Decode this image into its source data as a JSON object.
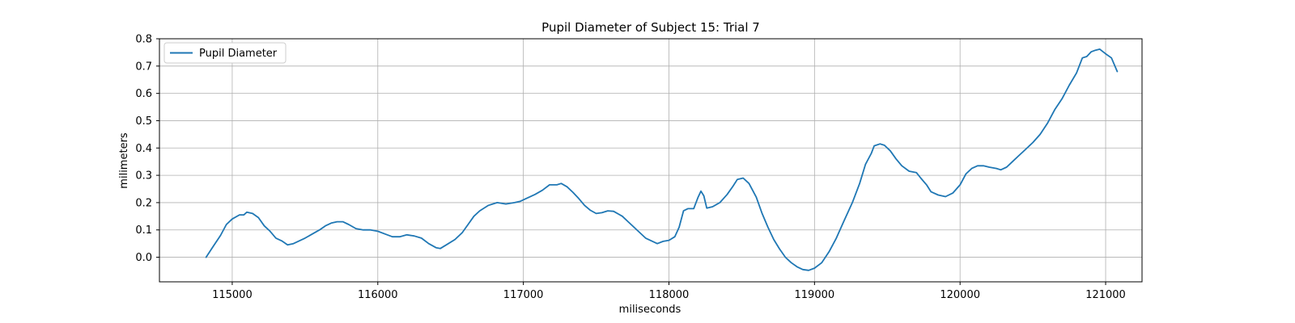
{
  "chart_data": {
    "type": "line",
    "title": "Pupil Diameter of Subject 15: Trial 7",
    "xlabel": "miliseconds",
    "ylabel": "milimeters",
    "xlim": [
      114500,
      121250
    ],
    "ylim": [
      -0.09,
      0.8
    ],
    "xticks": [
      115000,
      116000,
      117000,
      118000,
      119000,
      120000,
      121000
    ],
    "yticks": [
      0.0,
      0.1,
      0.2,
      0.3,
      0.4,
      0.5,
      0.6,
      0.7,
      0.8
    ],
    "ytick_labels": [
      "0.0",
      "0.1",
      "0.2",
      "0.3",
      "0.4",
      "0.5",
      "0.6",
      "0.7",
      "0.8"
    ],
    "grid": true,
    "legend_position": "top-left",
    "series": [
      {
        "name": "Pupil Diameter",
        "color": "#1f77b4",
        "points": [
          [
            114820,
            0.0
          ],
          [
            114870,
            0.04
          ],
          [
            114920,
            0.08
          ],
          [
            114960,
            0.12
          ],
          [
            115000,
            0.14
          ],
          [
            115050,
            0.155
          ],
          [
            115080,
            0.155
          ],
          [
            115100,
            0.165
          ],
          [
            115140,
            0.16
          ],
          [
            115180,
            0.145
          ],
          [
            115220,
            0.115
          ],
          [
            115260,
            0.095
          ],
          [
            115300,
            0.07
          ],
          [
            115340,
            0.06
          ],
          [
            115380,
            0.045
          ],
          [
            115420,
            0.05
          ],
          [
            115460,
            0.06
          ],
          [
            115500,
            0.07
          ],
          [
            115550,
            0.085
          ],
          [
            115600,
            0.1
          ],
          [
            115640,
            0.115
          ],
          [
            115680,
            0.125
          ],
          [
            115720,
            0.13
          ],
          [
            115760,
            0.13
          ],
          [
            115800,
            0.12
          ],
          [
            115850,
            0.105
          ],
          [
            115900,
            0.1
          ],
          [
            115950,
            0.1
          ],
          [
            116000,
            0.095
          ],
          [
            116050,
            0.085
          ],
          [
            116100,
            0.075
          ],
          [
            116150,
            0.075
          ],
          [
            116200,
            0.082
          ],
          [
            116250,
            0.078
          ],
          [
            116300,
            0.07
          ],
          [
            116350,
            0.05
          ],
          [
            116400,
            0.035
          ],
          [
            116430,
            0.032
          ],
          [
            116470,
            0.045
          ],
          [
            116530,
            0.065
          ],
          [
            116580,
            0.09
          ],
          [
            116620,
            0.12
          ],
          [
            116660,
            0.15
          ],
          [
            116700,
            0.17
          ],
          [
            116760,
            0.19
          ],
          [
            116820,
            0.2
          ],
          [
            116880,
            0.195
          ],
          [
            116940,
            0.2
          ],
          [
            116980,
            0.205
          ],
          [
            117020,
            0.215
          ],
          [
            117080,
            0.23
          ],
          [
            117130,
            0.245
          ],
          [
            117180,
            0.265
          ],
          [
            117230,
            0.265
          ],
          [
            117260,
            0.27
          ],
          [
            117300,
            0.258
          ],
          [
            117340,
            0.238
          ],
          [
            117380,
            0.215
          ],
          [
            117420,
            0.19
          ],
          [
            117460,
            0.172
          ],
          [
            117500,
            0.16
          ],
          [
            117540,
            0.163
          ],
          [
            117580,
            0.17
          ],
          [
            117620,
            0.168
          ],
          [
            117680,
            0.15
          ],
          [
            117720,
            0.13
          ],
          [
            117760,
            0.11
          ],
          [
            117800,
            0.09
          ],
          [
            117840,
            0.07
          ],
          [
            117880,
            0.06
          ],
          [
            117920,
            0.05
          ],
          [
            117960,
            0.058
          ],
          [
            118000,
            0.062
          ],
          [
            118040,
            0.075
          ],
          [
            118070,
            0.11
          ],
          [
            118100,
            0.17
          ],
          [
            118130,
            0.178
          ],
          [
            118170,
            0.178
          ],
          [
            118200,
            0.22
          ],
          [
            118220,
            0.242
          ],
          [
            118240,
            0.225
          ],
          [
            118260,
            0.18
          ],
          [
            118300,
            0.185
          ],
          [
            118350,
            0.2
          ],
          [
            118400,
            0.23
          ],
          [
            118440,
            0.26
          ],
          [
            118470,
            0.285
          ],
          [
            118510,
            0.29
          ],
          [
            118550,
            0.27
          ],
          [
            118600,
            0.22
          ],
          [
            118640,
            0.16
          ],
          [
            118680,
            0.11
          ],
          [
            118720,
            0.065
          ],
          [
            118760,
            0.03
          ],
          [
            118800,
            0.0
          ],
          [
            118840,
            -0.02
          ],
          [
            118880,
            -0.035
          ],
          [
            118920,
            -0.045
          ],
          [
            118960,
            -0.048
          ],
          [
            119000,
            -0.04
          ],
          [
            119050,
            -0.02
          ],
          [
            119100,
            0.02
          ],
          [
            119150,
            0.07
          ],
          [
            119200,
            0.13
          ],
          [
            119260,
            0.2
          ],
          [
            119310,
            0.27
          ],
          [
            119350,
            0.34
          ],
          [
            119390,
            0.38
          ],
          [
            119410,
            0.408
          ],
          [
            119450,
            0.415
          ],
          [
            119480,
            0.41
          ],
          [
            119520,
            0.39
          ],
          [
            119560,
            0.36
          ],
          [
            119600,
            0.335
          ],
          [
            119650,
            0.315
          ],
          [
            119700,
            0.31
          ],
          [
            119730,
            0.29
          ],
          [
            119770,
            0.265
          ],
          [
            119800,
            0.24
          ],
          [
            119850,
            0.228
          ],
          [
            119900,
            0.222
          ],
          [
            119950,
            0.235
          ],
          [
            120000,
            0.265
          ],
          [
            120040,
            0.305
          ],
          [
            120080,
            0.325
          ],
          [
            120120,
            0.335
          ],
          [
            120160,
            0.335
          ],
          [
            120200,
            0.33
          ],
          [
            120250,
            0.325
          ],
          [
            120280,
            0.32
          ],
          [
            120320,
            0.33
          ],
          [
            120360,
            0.35
          ],
          [
            120400,
            0.37
          ],
          [
            120450,
            0.395
          ],
          [
            120500,
            0.42
          ],
          [
            120550,
            0.45
          ],
          [
            120600,
            0.49
          ],
          [
            120650,
            0.54
          ],
          [
            120700,
            0.58
          ],
          [
            120750,
            0.63
          ],
          [
            120800,
            0.675
          ],
          [
            120840,
            0.73
          ],
          [
            120870,
            0.735
          ],
          [
            120900,
            0.752
          ],
          [
            120930,
            0.758
          ],
          [
            120960,
            0.762
          ],
          [
            121000,
            0.745
          ],
          [
            121040,
            0.73
          ],
          [
            121080,
            0.68
          ]
        ]
      }
    ]
  }
}
